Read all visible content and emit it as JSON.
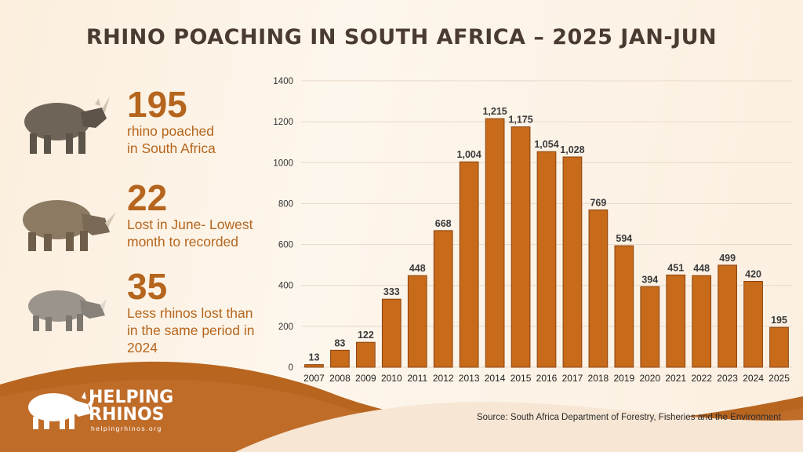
{
  "title": "RHINO POACHING IN SOUTH AFRICA – 2025 JAN-JUN",
  "stats": [
    {
      "number": "195",
      "line1": "rhino poached",
      "line2": "in South Africa",
      "line3": ""
    },
    {
      "number": "22",
      "line1": "Lost in June- Lowest",
      "line2": "month to recorded",
      "line3": ""
    },
    {
      "number": "35",
      "line1": "Less rhinos lost than",
      "line2": "in the same period in",
      "line3": "2024"
    }
  ],
  "logo": {
    "line1": "HELPING",
    "line2": "RHINOS",
    "url": "helpingrhinos.org"
  },
  "source": "Source: South Africa Department of Forestry, Fisheries and the Environment",
  "colors": {
    "bar": "#c76a1a",
    "bar_edge": "#8a4410",
    "accent": "#b5651d",
    "title": "#4a3b32",
    "wave": "#b8651f"
  },
  "chart_data": {
    "type": "bar",
    "title": "",
    "xlabel": "",
    "ylabel": "",
    "categories": [
      "2007",
      "2008",
      "2009",
      "2010",
      "2011",
      "2012",
      "2013",
      "2014",
      "2015",
      "2016",
      "2017",
      "2018",
      "2019",
      "2020",
      "2021",
      "2022",
      "2023",
      "2024",
      "2025"
    ],
    "values": [
      13,
      83,
      122,
      333,
      448,
      668,
      1004,
      1215,
      1175,
      1054,
      1028,
      769,
      594,
      394,
      451,
      448,
      499,
      420,
      195
    ],
    "data_labels": [
      "13",
      "83",
      "122",
      "333",
      "448",
      "668",
      "1,004",
      "1,215",
      "1,175",
      "1,054",
      "1,028",
      "769",
      "594",
      "394",
      "451",
      "448",
      "499",
      "420",
      "195"
    ],
    "ylim": [
      0,
      1400
    ],
    "yticks": [
      0,
      200,
      400,
      600,
      800,
      1000,
      1200,
      1400
    ],
    "grid": true
  }
}
